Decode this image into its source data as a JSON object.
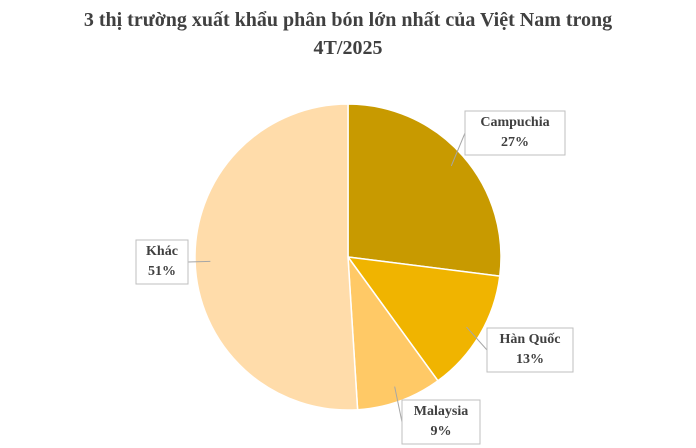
{
  "chart_data": {
    "type": "pie",
    "title": "3 thị trường xuất khẩu phân bón lớn nhất của Việt Nam trong 4T/2025",
    "categories": [
      "Campuchia",
      "Hàn Quốc",
      "Malaysia",
      "Khác"
    ],
    "values": [
      27,
      13,
      9,
      51
    ],
    "value_labels": [
      "27%",
      "13%",
      "9%",
      "51%"
    ],
    "colors": [
      "#c89a00",
      "#f0b400",
      "#ffc966",
      "#ffdcaa"
    ]
  }
}
